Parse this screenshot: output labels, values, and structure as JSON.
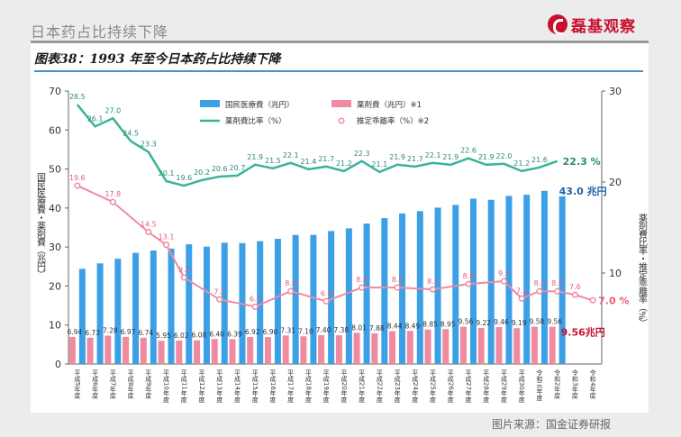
{
  "page": {
    "title": "日本药占比持续下降",
    "brand": "磊基观察",
    "figure_title": "图表38：1993 年至今日本药占比持续下降",
    "source": "图片来源：国金证券研报"
  },
  "chart_data": {
    "type": "bar",
    "categories": [
      "平成5年度",
      "平成6年度",
      "平成7年度",
      "平成8年度",
      "平成9年度",
      "平成10年度",
      "平成11年度",
      "平成12年度",
      "平成13年度",
      "平成14年度",
      "平成15年度",
      "平成16年度",
      "平成17年度",
      "平成18年度",
      "平成19年度",
      "平成20年度",
      "平成21年度",
      "平成22年度",
      "平成23年度",
      "平成24年度",
      "平成25年度",
      "平成26年度",
      "平成27年度",
      "平成28年度",
      "平成29年度",
      "平成30年度",
      "令和元年度",
      "令和2年度",
      "令和3年度",
      "令和4年度"
    ],
    "ylabel": "国民医療費・薬剤費（兆円）",
    "y2label": "薬剤費比率・推定乖離率（%）",
    "ylim": [
      0,
      70
    ],
    "y2lim": [
      0,
      30
    ],
    "yticks": [
      0,
      10,
      20,
      30,
      40,
      50,
      60,
      70
    ],
    "y2ticks": [
      10,
      20,
      30
    ],
    "legend": [
      "国民医療費（兆円）",
      "薬剤費（兆円）※1",
      "薬剤費比率（%）",
      "推定乖離率（%）※2"
    ],
    "series": [
      {
        "name": "国民医療費（兆円）",
        "kind": "bar",
        "axis": "left",
        "color": "#3ca0e6",
        "values": [
          24.4,
          25.8,
          27.0,
          28.5,
          29.1,
          29.6,
          30.7,
          30.1,
          31.1,
          31.0,
          31.5,
          32.1,
          33.1,
          33.1,
          34.1,
          34.8,
          36.0,
          37.4,
          38.6,
          39.2,
          40.1,
          40.8,
          42.4,
          42.1,
          43.1,
          43.4,
          44.4,
          43.0,
          null,
          null
        ],
        "end_label": "43.0 兆円"
      },
      {
        "name": "薬剤費（兆円）※1",
        "kind": "bar",
        "axis": "left",
        "color": "#f08aa0",
        "values": [
          6.94,
          6.73,
          7.28,
          6.97,
          6.74,
          5.95,
          6.02,
          6.08,
          6.4,
          6.39,
          6.92,
          6.9,
          7.31,
          7.1,
          7.4,
          7.38,
          8.01,
          7.88,
          8.44,
          8.49,
          8.85,
          8.95,
          9.56,
          9.22,
          9.46,
          9.19,
          9.58,
          9.56,
          null,
          null
        ],
        "end_label": "9.56兆円"
      },
      {
        "name": "薬剤費比率（%）",
        "kind": "line",
        "axis": "right",
        "color": "#3bb39a",
        "values": [
          28.5,
          26.1,
          27.0,
          24.5,
          23.3,
          20.1,
          19.6,
          20.2,
          20.6,
          20.7,
          21.9,
          21.5,
          22.1,
          21.4,
          21.7,
          21.2,
          22.3,
          21.1,
          21.9,
          21.7,
          22.1,
          21.9,
          22.6,
          21.9,
          22.0,
          21.2,
          21.6,
          22.3,
          null,
          null
        ],
        "end_label": "22.3 %"
      },
      {
        "name": "推定乖離率（%）※2",
        "kind": "line",
        "axis": "right",
        "color": "#f08aa0",
        "values": [
          19.6,
          null,
          17.8,
          null,
          14.5,
          13.1,
          9.5,
          null,
          7.1,
          null,
          6.3,
          null,
          8.0,
          null,
          6.9,
          null,
          8.4,
          null,
          8.4,
          null,
          8.2,
          null,
          8.8,
          null,
          9.1,
          7.2,
          8.0,
          8.0,
          7.6,
          7.0
        ],
        "end_label": "7.0 %"
      }
    ]
  }
}
